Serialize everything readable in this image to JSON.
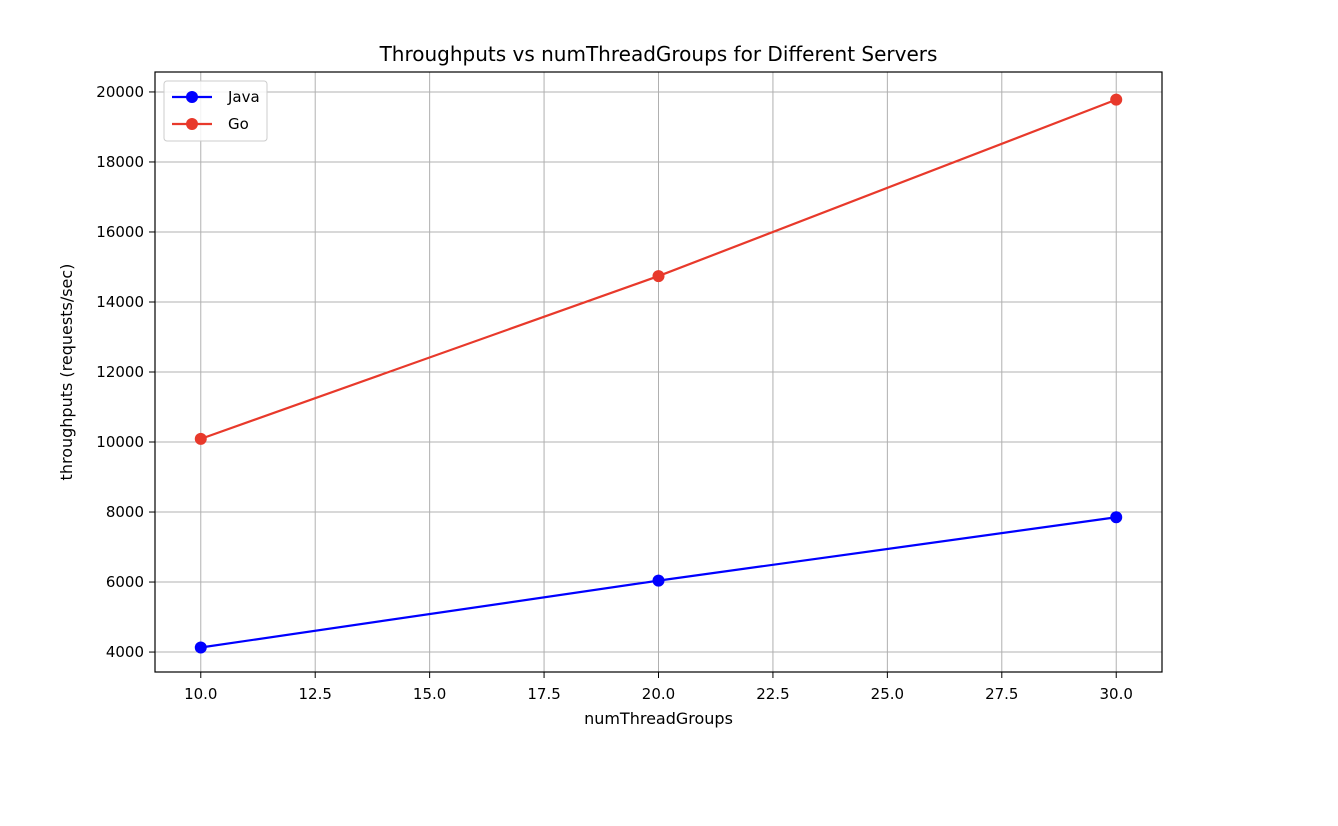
{
  "chart_data": {
    "type": "line",
    "title": "Throughputs vs numThreadGroups for Different Servers",
    "xlabel": "numThreadGroups",
    "ylabel": "throughputs (requests/sec)",
    "x": [
      10,
      20,
      30
    ],
    "series": [
      {
        "name": "Java",
        "values": [
          4130,
          6040,
          7850
        ],
        "color": "#0000ff",
        "marker": "circle"
      },
      {
        "name": "Go",
        "values": [
          10090,
          14740,
          19780
        ],
        "color": "#e8392b",
        "marker": "circle"
      }
    ],
    "xlim": [
      9.0,
      31.0
    ],
    "ylim": [
      3430,
      20570
    ],
    "xticks": [
      10.0,
      12.5,
      15.0,
      17.5,
      20.0,
      22.5,
      25.0,
      27.5,
      30.0
    ],
    "xtick_labels": [
      "10.0",
      "12.5",
      "15.0",
      "17.5",
      "20.0",
      "22.5",
      "25.0",
      "27.5",
      "30.0"
    ],
    "yticks": [
      4000,
      6000,
      8000,
      10000,
      12000,
      14000,
      16000,
      18000,
      20000
    ],
    "ytick_labels": [
      "4000",
      "6000",
      "8000",
      "10000",
      "12000",
      "14000",
      "16000",
      "18000",
      "20000"
    ],
    "grid": true,
    "legend": "upper-left"
  }
}
